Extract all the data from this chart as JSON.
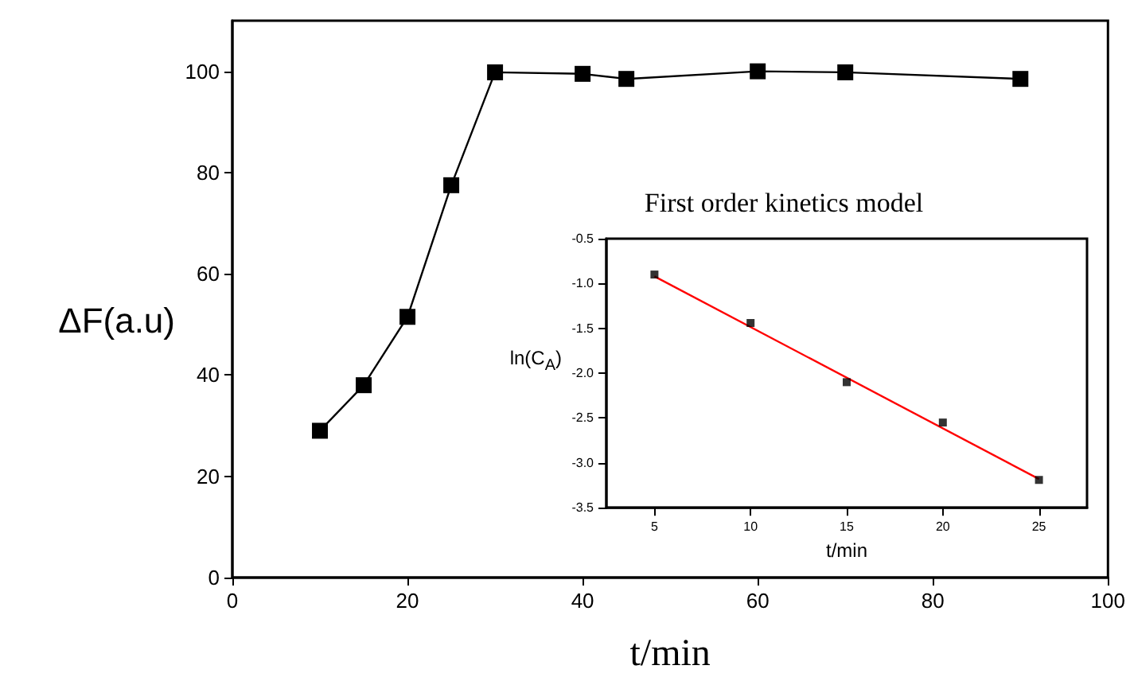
{
  "chart_data": [
    {
      "type": "line",
      "xlabel": "t/min",
      "ylabel": "ΔF(a.u)",
      "x": [
        10,
        15,
        20,
        25,
        30,
        40,
        45,
        60,
        70,
        90
      ],
      "values": [
        29,
        38,
        51.5,
        77.5,
        99.8,
        99.5,
        98.5,
        100,
        99.8,
        98.5
      ],
      "color": "#000000",
      "marker": "square",
      "line_style": "solid",
      "xlim": [
        0,
        100
      ],
      "xticks": [
        0,
        20,
        40,
        60,
        80,
        100
      ],
      "ylim": [
        0,
        110
      ],
      "yticks": [
        0,
        20,
        40,
        60,
        80,
        100
      ],
      "grid": false
    },
    {
      "type": "scatter",
      "title": "First order kinetics model",
      "xlabel": "t/min",
      "ylabel": "ln(C$_{A}$)",
      "series": [
        {
          "x": [
            5,
            10,
            15,
            20,
            25
          ],
          "values": [
            -0.9,
            -1.44,
            -2.1,
            -2.55,
            -3.19
          ],
          "color": "#000000",
          "marker": "square"
        },
        {
          "type": "line",
          "x": [
            5,
            25
          ],
          "values": [
            -0.92,
            -3.18
          ],
          "color": "#ff0000",
          "marker": "none",
          "line_style": "solid"
        }
      ],
      "xlim": [
        2.5,
        27.5
      ],
      "xticks": [
        5,
        10,
        15,
        20,
        25
      ],
      "ylim": [
        -3.5,
        -0.5
      ],
      "yticks": [
        {
          "value": -3.5,
          "label": "-3.5"
        },
        {
          "value": -3,
          "label": "-3.0"
        },
        {
          "value": -2.5,
          "label": "-2.5"
        },
        {
          "value": -2,
          "label": "-2.0"
        },
        {
          "value": -1.5,
          "label": "-1.5"
        },
        {
          "value": -1,
          "label": "-1.0"
        },
        {
          "value": -0.5,
          "label": "-0.5"
        }
      ],
      "grid": false
    }
  ]
}
